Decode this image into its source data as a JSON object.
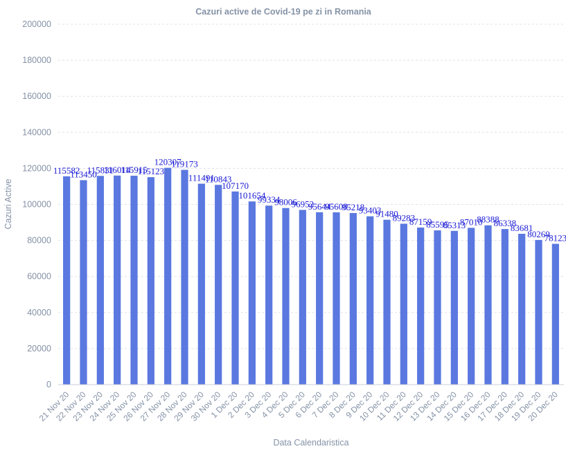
{
  "chart_data": {
    "type": "bar",
    "title": "Cazuri active de Covid-19 pe zi in Romania",
    "xlabel": "Data Calendaristica",
    "ylabel": "Cazuri Active",
    "ylim": [
      0,
      200000
    ],
    "yticks": [
      0,
      20000,
      40000,
      60000,
      80000,
      100000,
      120000,
      140000,
      160000,
      180000,
      200000
    ],
    "grid": true,
    "categories": [
      "21 Nov 20",
      "22 Nov 20",
      "23 Nov 20",
      "24 Nov 20",
      "25 Nov 20",
      "26 Nov 20",
      "27 Nov 20",
      "28 Nov 20",
      "29 Nov 20",
      "30 Nov 20",
      "1 Dec 20",
      "2 Dec 20",
      "3 Dec 20",
      "4 Dec 20",
      "5 Dec 20",
      "6 Dec 20",
      "7 Dec 20",
      "8 Dec 20",
      "9 Dec 20",
      "10 Dec 20",
      "11 Dec 20",
      "12 Dec 20",
      "13 Dec 20",
      "14 Dec 20",
      "15 Dec 20",
      "16 Dec 20",
      "17 Dec 20",
      "18 Dec 20",
      "19 Dec 20",
      "20 Dec 20"
    ],
    "values": [
      115582,
      113450,
      115831,
      116014,
      115915,
      115123,
      120307,
      119173,
      111491,
      110843,
      107170,
      101654,
      99334,
      98006,
      96952,
      95644,
      95608,
      95218,
      93403,
      91480,
      89283,
      87159,
      85595,
      85313,
      87010,
      88388,
      86338,
      83681,
      80269,
      78123
    ],
    "colors": {
      "bar": "#5a78e0",
      "data_label": "#1a1ad6",
      "text": "#8492a6"
    }
  }
}
